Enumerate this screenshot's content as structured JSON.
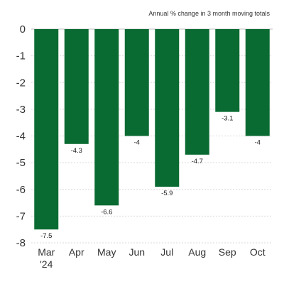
{
  "chart_data": {
    "type": "bar",
    "subtitle": "Annual % change in 3 month moving totals",
    "categories": [
      "Mar",
      "Apr",
      "May",
      "Jun",
      "Jul",
      "Aug",
      "Sep",
      "Oct"
    ],
    "category_sublabels": [
      "'24",
      "",
      "",
      "",
      "",
      "",
      "",
      ""
    ],
    "values": [
      -7.5,
      -4.3,
      -6.6,
      -4,
      -5.9,
      -4.7,
      -3.1,
      -4
    ],
    "data_labels": [
      "-7.5",
      "-4.3",
      "-6.6",
      "-4",
      "-5.9",
      "-4.7",
      "-3.1",
      "-4"
    ],
    "ylim": [
      -8,
      0
    ],
    "yticks": [
      0,
      -1,
      -2,
      -3,
      -4,
      -5,
      -6,
      -7,
      -8
    ],
    "grid": true,
    "bar_color": "#0a6b32"
  }
}
